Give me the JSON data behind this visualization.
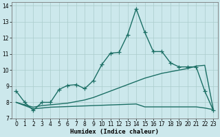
{
  "bg_color": "#cce8ec",
  "grid_color": "#aacccc",
  "line_color": "#1a6e64",
  "xlabel": "Humidex (Indice chaleur)",
  "xlim": [
    -0.5,
    23.5
  ],
  "ylim": [
    7,
    14.2
  ],
  "yticks": [
    7,
    8,
    9,
    10,
    11,
    12,
    13,
    14
  ],
  "xticks": [
    0,
    1,
    2,
    3,
    4,
    5,
    6,
    7,
    8,
    9,
    10,
    11,
    12,
    13,
    14,
    15,
    16,
    17,
    18,
    19,
    20,
    21,
    22,
    23
  ],
  "main_x": [
    0,
    1,
    2,
    3,
    4,
    5,
    6,
    7,
    8,
    9,
    10,
    11,
    12,
    13,
    14,
    15,
    16,
    17,
    18,
    19,
    20,
    21,
    22,
    23
  ],
  "main_y": [
    8.7,
    8.0,
    7.5,
    8.0,
    8.0,
    8.8,
    9.05,
    9.1,
    8.85,
    9.35,
    10.35,
    11.05,
    11.1,
    12.2,
    13.8,
    12.35,
    11.15,
    11.15,
    10.45,
    10.2,
    10.2,
    10.2,
    8.7,
    7.5
  ],
  "line2_x": [
    0,
    1,
    2,
    3,
    4,
    5,
    6,
    7,
    8,
    9,
    10,
    11,
    12,
    13,
    14,
    15,
    16,
    17,
    18,
    19,
    20,
    21,
    22,
    23
  ],
  "line2_y": [
    8.0,
    7.85,
    7.7,
    7.8,
    7.85,
    7.9,
    7.95,
    8.05,
    8.15,
    8.3,
    8.5,
    8.7,
    8.9,
    9.1,
    9.3,
    9.5,
    9.65,
    9.8,
    9.9,
    10.0,
    10.1,
    10.25,
    10.3,
    7.55
  ],
  "line3_x": [
    0,
    1,
    2,
    3,
    4,
    5,
    6,
    7,
    8,
    9,
    10,
    11,
    12,
    13,
    14,
    15,
    16,
    17,
    18,
    19,
    20,
    21,
    22,
    23
  ],
  "line3_y": [
    8.0,
    7.8,
    7.6,
    7.65,
    7.7,
    7.72,
    7.74,
    7.76,
    7.78,
    7.8,
    7.82,
    7.84,
    7.86,
    7.88,
    7.9,
    7.72,
    7.72,
    7.72,
    7.72,
    7.72,
    7.72,
    7.72,
    7.65,
    7.55
  ],
  "marker_size": 4,
  "line_width": 1.0
}
